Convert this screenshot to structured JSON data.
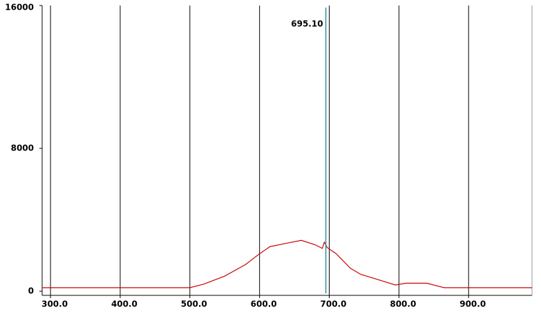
{
  "chart_data": {
    "type": "line",
    "x": [
      288,
      500,
      520,
      550,
      580,
      600,
      615,
      640,
      660,
      680,
      690,
      693,
      697,
      710,
      730,
      745,
      770,
      795,
      810,
      840,
      865,
      991
    ],
    "series": [
      {
        "color": "#cc0000",
        "values": [
          200,
          200,
          400,
          850,
          1500,
          2100,
          2500,
          2700,
          2850,
          2600,
          2400,
          2750,
          2450,
          2100,
          1300,
          950,
          650,
          350,
          450,
          450,
          200,
          200
        ]
      }
    ],
    "xlim": [
      288,
      991
    ],
    "ylim": [
      -230,
      16000
    ],
    "xticks": [
      {
        "value": 300,
        "label": "300.0"
      },
      {
        "value": 400,
        "label": "400.0"
      },
      {
        "value": 500,
        "label": "500.0"
      },
      {
        "value": 600,
        "label": "600.0"
      },
      {
        "value": 700,
        "label": "700.0"
      },
      {
        "value": 800,
        "label": "800.0"
      },
      {
        "value": 900,
        "label": "900.0"
      }
    ],
    "yticks": [
      0,
      8000,
      16000
    ],
    "grid": true,
    "cursor": {
      "value": 695.1,
      "label": "695.10",
      "color": "#2a8fa0"
    }
  }
}
